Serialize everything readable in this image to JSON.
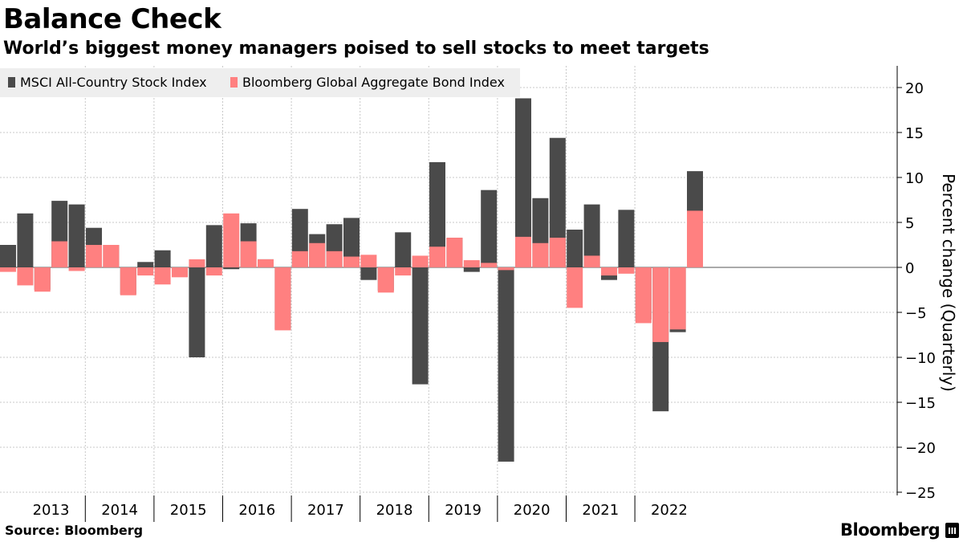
{
  "title": "Balance Check",
  "subtitle": "World’s biggest money managers poised to sell stocks to meet targets",
  "footer": {
    "source": "Source: Bloomberg",
    "brand": "Bloomberg"
  },
  "colors": {
    "stock": "#4a4a4a",
    "bond": "#ff8080",
    "grid": "#c8c8c8",
    "legend_bg": "#eeeeee"
  },
  "chart_data": {
    "type": "bar",
    "title": "Balance Check",
    "subtitle": "World’s biggest money managers poised to sell stocks to meet targets",
    "xlabel": "",
    "ylabel": "Percent change (Quarterly)",
    "ylim": [
      -26,
      23
    ],
    "yticks": [
      20,
      15,
      10,
      5,
      0,
      -5,
      -10,
      -15,
      -20,
      -25
    ],
    "legend_position": "top-left",
    "year_labels": [
      "2013",
      "2014",
      "2015",
      "2016",
      "2017",
      "2018",
      "2019",
      "2020",
      "2021",
      "2022"
    ],
    "categories": [
      "2012 Q4",
      "2013 Q1",
      "2013 Q2",
      "2013 Q3",
      "2013 Q4",
      "2014 Q1",
      "2014 Q2",
      "2014 Q3",
      "2014 Q4",
      "2015 Q1",
      "2015 Q2",
      "2015 Q3",
      "2015 Q4",
      "2016 Q1",
      "2016 Q2",
      "2016 Q3",
      "2016 Q4",
      "2017 Q1",
      "2017 Q2",
      "2017 Q3",
      "2017 Q4",
      "2018 Q1",
      "2018 Q2",
      "2018 Q3",
      "2018 Q4",
      "2019 Q1",
      "2019 Q2",
      "2019 Q3",
      "2019 Q4",
      "2020 Q1",
      "2020 Q2",
      "2020 Q3",
      "2020 Q4",
      "2021 Q1",
      "2021 Q2",
      "2021 Q3",
      "2021 Q4",
      "2022 Q1",
      "2022 Q2",
      "2022 Q3",
      "2022 Q4"
    ],
    "series": [
      {
        "name": "MSCI All-Country Stock Index",
        "values": [
          2.5,
          6.0,
          -2.5,
          7.4,
          7.0,
          4.4,
          2.5,
          -3.0,
          0.6,
          1.9,
          -1.0,
          -10.0,
          4.7,
          -0.2,
          4.9,
          0.9,
          -6.9,
          6.5,
          3.7,
          4.8,
          5.5,
          -1.4,
          -2.6,
          3.9,
          -13.0,
          11.7,
          3.3,
          -0.5,
          8.6,
          -21.6,
          18.8,
          7.7,
          14.4,
          4.2,
          7.0,
          -1.4,
          6.4,
          -5.8,
          -16.0,
          -7.2,
          10.7
        ]
      },
      {
        "name": "Bloomberg Global Aggregate Bond Index",
        "values": [
          -0.5,
          -2.0,
          -2.7,
          2.9,
          -0.4,
          2.5,
          2.5,
          -3.1,
          -0.9,
          -1.9,
          -1.1,
          0.9,
          -0.9,
          6.0,
          2.9,
          0.9,
          -7.0,
          1.8,
          2.7,
          1.8,
          1.2,
          1.4,
          -2.8,
          -0.9,
          1.3,
          2.3,
          3.3,
          0.8,
          0.5,
          -0.3,
          3.4,
          2.7,
          3.3,
          -4.5,
          1.3,
          -0.9,
          -0.7,
          -6.2,
          -8.3,
          -6.9,
          6.3
        ]
      }
    ]
  }
}
